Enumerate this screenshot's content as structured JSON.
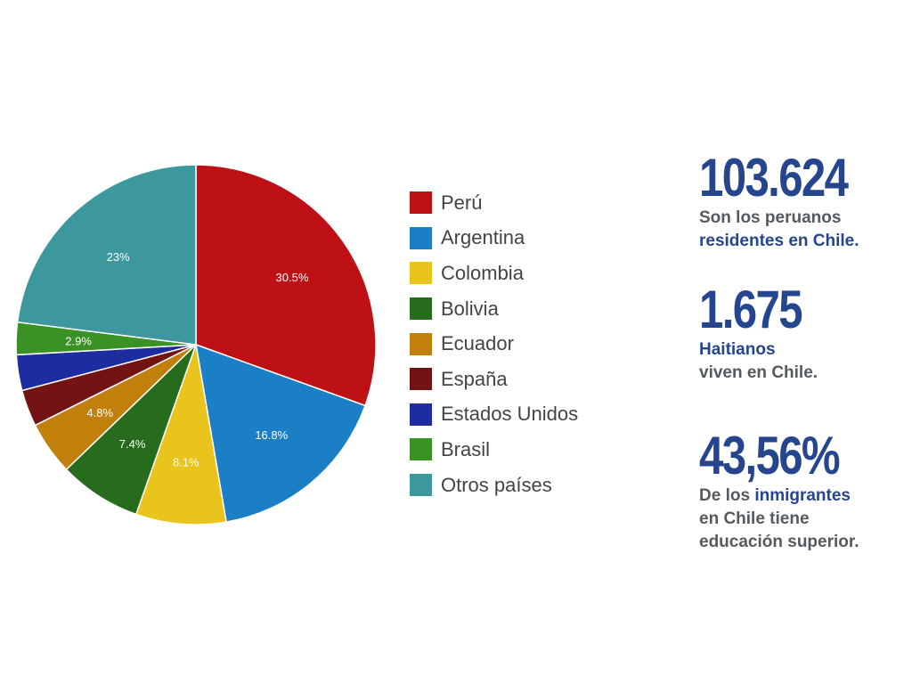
{
  "chart_data": {
    "type": "pie",
    "categories": [
      "Perú",
      "Argentina",
      "Colombia",
      "Bolivia",
      "Ecuador",
      "España",
      "Estados Unidos",
      "Brasil",
      "Otros países"
    ],
    "values": [
      30.5,
      16.8,
      8.1,
      7.4,
      4.8,
      3.3,
      3.2,
      2.9,
      23
    ],
    "data_labels": [
      "30.5%",
      "16.8%",
      "8.1%",
      "7.4%",
      "4.8%",
      "",
      "",
      "2.9%",
      "23%"
    ],
    "colors": [
      "#bd1116",
      "#1a7fc4",
      "#e9c41d",
      "#266c1c",
      "#c17f0c",
      "#731313",
      "#1d2ca0",
      "#3a9124",
      "#3c989c"
    ],
    "legend_position": "right"
  },
  "stats": [
    {
      "number": "103.624",
      "lines": [
        [
          {
            "text": "Son los peruanos",
            "color": "gray"
          }
        ],
        [
          {
            "text": "residentes en Chile.",
            "color": "blue"
          }
        ]
      ]
    },
    {
      "number": "1.675",
      "lines": [
        [
          {
            "text": "Haitianos",
            "color": "blue"
          }
        ],
        [
          {
            "text": "viven en Chile.",
            "color": "gray"
          }
        ]
      ]
    },
    {
      "number": "43,56%",
      "lines": [
        [
          {
            "text": "De los ",
            "color": "gray"
          },
          {
            "text": "inmigrantes",
            "color": "blue"
          }
        ],
        [
          {
            "text": "en Chile tiene",
            "color": "gray"
          }
        ],
        [
          {
            "text": "educación superior.",
            "color": "gray"
          }
        ]
      ]
    }
  ]
}
